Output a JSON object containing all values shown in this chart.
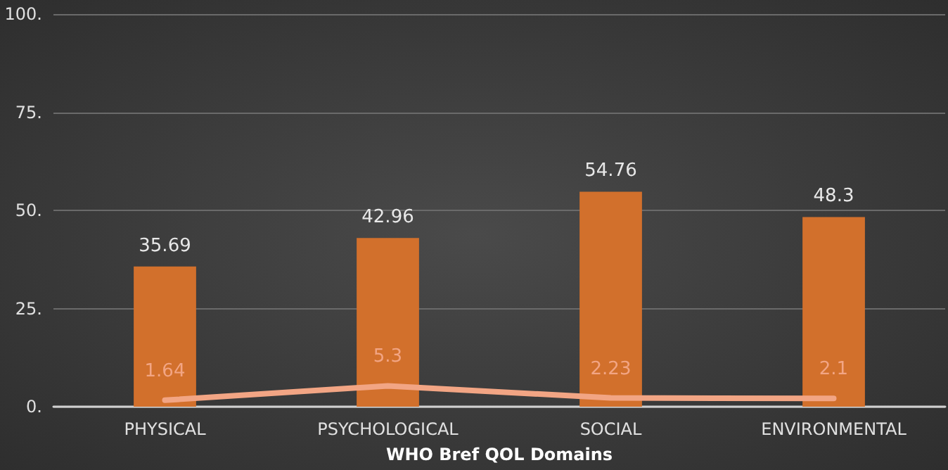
{
  "chart_data": {
    "type": "bar",
    "xlabel": "WHO Bref QOL Domains",
    "categories": [
      "PHYSICAL",
      "PSYCHOLOGICAL",
      "SOCIAL",
      "ENVIRONMENTAL"
    ],
    "series": [
      {
        "color": "#d2702c",
        "values": [
          35.69,
          42.96,
          54.76,
          48.3
        ]
      },
      {
        "type": "line",
        "color": "#f2a584",
        "values": [
          1.64,
          5.3,
          2.23,
          2.1
        ]
      }
    ],
    "ylim": [
      0,
      100
    ],
    "yticks": [
      {
        "value": 0,
        "label": "0."
      },
      {
        "value": 25,
        "label": "25."
      },
      {
        "value": 50,
        "label": "50."
      },
      {
        "value": 75,
        "label": "75."
      },
      {
        "value": 100,
        "label": "100."
      }
    ],
    "grid": "y",
    "data_labels": true,
    "marker": "none",
    "line_style": "solid"
  }
}
